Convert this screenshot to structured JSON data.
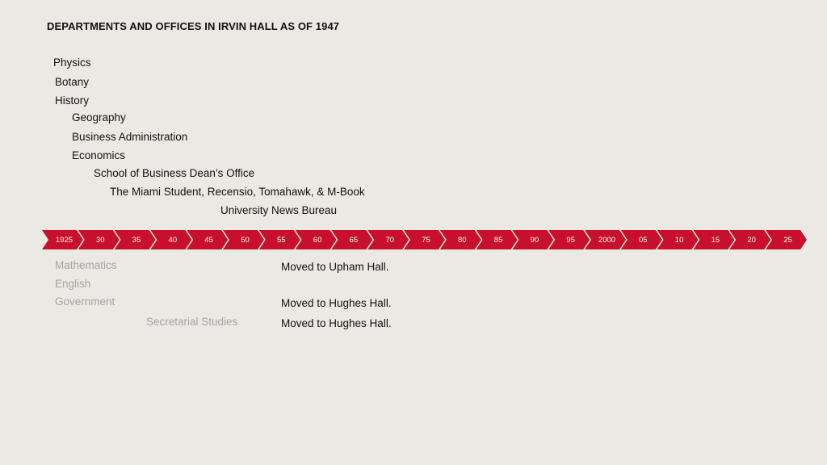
{
  "title": "DEPARTMENTS AND OFFICES IN IRVIN HALL AS OF 1947",
  "timeline": {
    "ticks": [
      "1925",
      "30",
      "35",
      "40",
      "45",
      "50",
      "55",
      "60",
      "65",
      "70",
      "75",
      "80",
      "85",
      "90",
      "95",
      "2000",
      "05",
      "10",
      "15",
      "20",
      "25"
    ],
    "accent_color": "#c8102e"
  },
  "current_units": [
    {
      "label": "Physics"
    },
    {
      "label": "Botany"
    },
    {
      "label": "History"
    },
    {
      "label": "Geography"
    },
    {
      "label": "Business Administration"
    },
    {
      "label": "Economics"
    },
    {
      "label": "School of Business Dean’s Office"
    },
    {
      "label": "The Miami Student, Recensio, Tomahawk, & M-Book"
    },
    {
      "label": "University News Bureau"
    }
  ],
  "former_units": [
    {
      "label": "Mathematics",
      "note": "Moved to Upham Hall."
    },
    {
      "label": "English",
      "note": ""
    },
    {
      "label": "Government",
      "note": "Moved to Hughes Hall."
    },
    {
      "label": "Secretarial Studies",
      "note": "Moved to Hughes Hall."
    }
  ]
}
